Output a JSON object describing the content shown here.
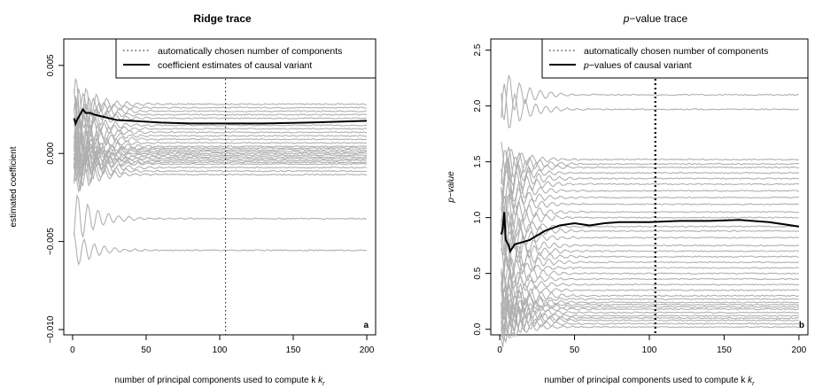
{
  "chart_data": [
    {
      "type": "line",
      "panel_letter": "a",
      "title": "Ridge trace",
      "xlabel": "number of principal components used to compute k",
      "xlabel_sub": "r",
      "ylabel": "estimated coefficient",
      "xlim": [
        -6,
        206
      ],
      "ylim": [
        -0.0103,
        0.0065
      ],
      "xticks": [
        0,
        50,
        100,
        150,
        200
      ],
      "yticks": [
        -0.01,
        -0.005,
        0.0,
        0.005
      ],
      "ytick_labels": [
        "−0.010",
        "−0.005",
        "0.000",
        "0.005"
      ],
      "chosen_components": 104,
      "legend": {
        "position": "top-right",
        "entries": [
          {
            "label": "automatically chosen number of components",
            "style": "dotted"
          },
          {
            "label": "coefficient estimates of causal variant",
            "style": "solid-thick"
          }
        ]
      },
      "highlight_series": {
        "points": [
          [
            1,
            0.002
          ],
          [
            2,
            0.0017
          ],
          [
            3,
            0.0019
          ],
          [
            5,
            0.0022
          ],
          [
            7,
            0.0025
          ],
          [
            9,
            0.0023
          ],
          [
            12,
            0.0023
          ],
          [
            15,
            0.0022
          ],
          [
            20,
            0.0021
          ],
          [
            25,
            0.002
          ],
          [
            30,
            0.0019
          ],
          [
            40,
            0.00185
          ],
          [
            50,
            0.0018
          ],
          [
            60,
            0.00175
          ],
          [
            80,
            0.0017
          ],
          [
            100,
            0.0017
          ],
          [
            130,
            0.0017
          ],
          [
            160,
            0.00175
          ],
          [
            200,
            0.00185
          ]
        ]
      },
      "background_series_finals": [
        0.0028,
        0.0026,
        0.0024,
        0.0022,
        0.002,
        0.0016,
        0.0014,
        0.0012,
        0.001,
        0.0008,
        0.0006,
        0.0004,
        0.0003,
        0.0002,
        0.0001,
        0.0,
        -0.0001,
        -0.0002,
        -0.0003,
        -0.0004,
        -0.0005,
        -0.0006,
        -0.0008,
        -0.001,
        -0.0012,
        -0.0037,
        -0.0055
      ]
    },
    {
      "type": "line",
      "panel_letter": "b",
      "title": "p−value trace",
      "title_italic_prefix": "p",
      "title_rest": "−value trace",
      "xlabel": "number of principal components used to compute k",
      "xlabel_sub": "r",
      "ylabel": "p−value",
      "xlim": [
        -6,
        206
      ],
      "ylim": [
        -0.05,
        2.6
      ],
      "xticks": [
        0,
        50,
        100,
        150,
        200
      ],
      "yticks": [
        0.0,
        0.5,
        1.0,
        1.5,
        2.0,
        2.5
      ],
      "ytick_labels": [
        "0.0",
        "0.5",
        "1.0",
        "1.5",
        "2.0",
        "2.5"
      ],
      "chosen_components": 104,
      "legend": {
        "position": "top-right",
        "entries": [
          {
            "label": "automatically chosen number of components",
            "style": "dotted"
          },
          {
            "label": "p−values of causal variant",
            "style": "solid-thick"
          }
        ]
      },
      "highlight_series": {
        "points": [
          [
            1,
            0.85
          ],
          [
            2,
            0.9
          ],
          [
            3,
            1.05
          ],
          [
            4,
            0.8
          ],
          [
            6,
            0.75
          ],
          [
            7,
            0.7
          ],
          [
            10,
            0.76
          ],
          [
            15,
            0.78
          ],
          [
            20,
            0.8
          ],
          [
            30,
            0.88
          ],
          [
            40,
            0.93
          ],
          [
            50,
            0.95
          ],
          [
            60,
            0.93
          ],
          [
            70,
            0.95
          ],
          [
            80,
            0.96
          ],
          [
            100,
            0.96
          ],
          [
            120,
            0.97
          ],
          [
            140,
            0.97
          ],
          [
            160,
            0.98
          ],
          [
            180,
            0.96
          ],
          [
            200,
            0.92
          ]
        ]
      },
      "background_series_finals": [
        2.1,
        1.97,
        1.52,
        1.48,
        1.45,
        1.4,
        1.35,
        1.3,
        1.24,
        1.18,
        1.12,
        1.05,
        1.0,
        0.92,
        0.88,
        0.82,
        0.75,
        0.7,
        0.65,
        0.6,
        0.55,
        0.5,
        0.45,
        0.4,
        0.35,
        0.3,
        0.27,
        0.24,
        0.22,
        0.2,
        0.18,
        0.15,
        0.12,
        0.1,
        0.08,
        0.05,
        0.02
      ]
    }
  ]
}
